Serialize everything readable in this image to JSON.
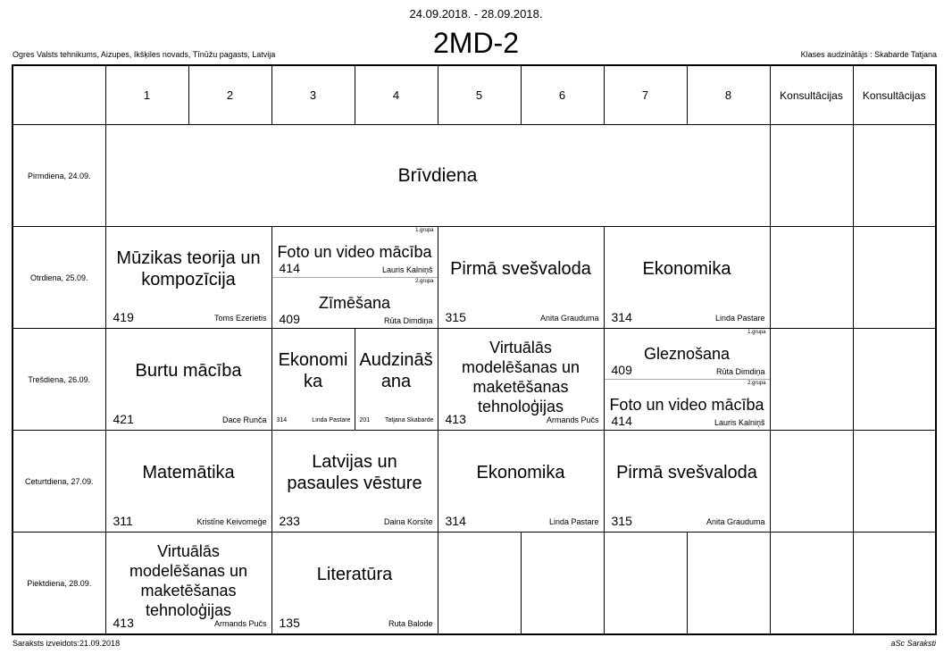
{
  "header": {
    "dates": "24.09.2018. - 28.09.2018.",
    "class_name": "2MD-2",
    "school": "Ogres Valsts tehnikums, Aizupes, Ikšķiles novads, Tīnūžu pagasts, Latvija",
    "teacher": "Klases audzinātājs : Skabarde Tatjana"
  },
  "columns": [
    "1",
    "2",
    "3",
    "4",
    "5",
    "6",
    "7",
    "8",
    "Konsultācijas",
    "Konsultācijas"
  ],
  "days": [
    "Pirmdiena, 24.09.",
    "Otrdiena, 25.09.",
    "Trešdiena, 26.09.",
    "Ceturtdiena, 27.09.",
    "Piektdiena, 28.09."
  ],
  "mon": {
    "free": "Brīvdiena"
  },
  "tue": {
    "a": {
      "subject": "Mūzikas teorija un kompozīcija",
      "room": "419",
      "teacher": "Toms Ezerietis"
    },
    "b1": {
      "subject": "Foto un video mācība",
      "room": "414",
      "teacher": "Lauris Kalniņš",
      "group": "1.grupa"
    },
    "b2": {
      "subject": "Zīmēšana",
      "room": "409",
      "teacher": "Rūta Dimdiņa",
      "group": "2.grupa"
    },
    "c": {
      "subject": "Pirmā svešvaloda",
      "room": "315",
      "teacher": "Anita Grauduma"
    },
    "d": {
      "subject": "Ekonomika",
      "room": "314",
      "teacher": "Linda Pastare"
    }
  },
  "wed": {
    "a": {
      "subject": "Burtu mācība",
      "room": "421",
      "teacher": "Dace Runča"
    },
    "b": {
      "subject": "Ekonomika",
      "room": "314",
      "teacher": "Linda Pastare"
    },
    "c": {
      "subject": "Audzināšana",
      "room": "201",
      "teacher": "Tatjana Skabarde"
    },
    "d": {
      "subject": "Virtuālās modelēšanas un maketēšanas tehnoloģijas",
      "room": "413",
      "teacher": "Armands Pučs"
    },
    "e1": {
      "subject": "Gleznošana",
      "room": "409",
      "teacher": "Rūta Dimdiņa",
      "group": "1.grupa"
    },
    "e2": {
      "subject": "Foto un video mācība",
      "room": "414",
      "teacher": "Lauris Kalniņš",
      "group": "2.grupa"
    }
  },
  "thu": {
    "a": {
      "subject": "Matemātika",
      "room": "311",
      "teacher": "Kristīne Keivomeģe"
    },
    "b": {
      "subject": "Latvijas un pasaules vēsture",
      "room": "233",
      "teacher": "Daina Korsīte"
    },
    "c": {
      "subject": "Ekonomika",
      "room": "314",
      "teacher": "Linda Pastare"
    },
    "d": {
      "subject": "Pirmā svešvaloda",
      "room": "315",
      "teacher": "Anita Grauduma"
    }
  },
  "fri": {
    "a": {
      "subject": "Virtuālās modelēšanas un maketēšanas tehnoloģijas",
      "room": "413",
      "teacher": "Armands Pučs"
    },
    "b": {
      "subject": "Literatūra",
      "room": "135",
      "teacher": "Ruta Balode"
    }
  },
  "footer": {
    "created": "Saraksts izveidots:21.09.2018",
    "brand": "aSc Saraksti"
  }
}
